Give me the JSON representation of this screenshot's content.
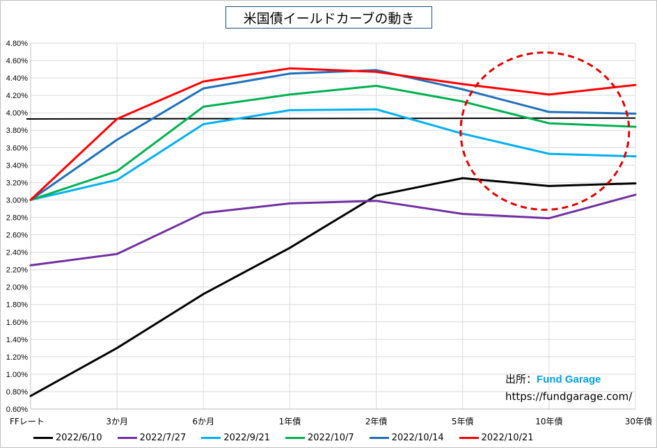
{
  "chart_data": {
    "type": "line",
    "title": "米国債イールドカーブの動き",
    "categories": [
      "FFレート",
      "3か月",
      "6か月",
      "1年債",
      "2年債",
      "5年債",
      "10年債",
      "30年債"
    ],
    "ylim": [
      0.6,
      4.8
    ],
    "yticks": [
      "0.60%",
      "0.80%",
      "1.00%",
      "1.20%",
      "1.40%",
      "1.60%",
      "1.80%",
      "2.00%",
      "2.20%",
      "2.40%",
      "2.60%",
      "2.80%",
      "3.00%",
      "3.20%",
      "3.40%",
      "3.60%",
      "3.80%",
      "4.00%",
      "4.20%",
      "4.40%",
      "4.60%",
      "4.80%"
    ],
    "ytick_values": [
      0.6,
      0.8,
      1.0,
      1.2,
      1.4,
      1.6,
      1.8,
      2.0,
      2.2,
      2.4,
      2.6,
      2.8,
      3.0,
      3.2,
      3.4,
      3.6,
      3.8,
      4.0,
      4.2,
      4.4,
      4.6,
      4.8
    ],
    "grid": true,
    "legend_position": "bottom",
    "series": [
      {
        "name": "2022/6/10",
        "color": "#000000",
        "values": [
          0.75,
          1.3,
          1.92,
          2.45,
          3.05,
          3.25,
          3.16,
          3.19
        ]
      },
      {
        "name": "2022/7/27",
        "color": "#7030a0",
        "values": [
          2.25,
          2.38,
          2.85,
          2.96,
          2.99,
          2.84,
          2.79,
          3.06
        ]
      },
      {
        "name": "2022/9/21",
        "color": "#00b0f0",
        "values": [
          3.0,
          3.23,
          3.87,
          4.03,
          4.04,
          3.76,
          3.53,
          3.5
        ]
      },
      {
        "name": "2022/10/7",
        "color": "#00b050",
        "values": [
          3.0,
          3.33,
          4.07,
          4.21,
          4.31,
          4.13,
          3.88,
          3.84
        ]
      },
      {
        "name": "2022/10/14",
        "color": "#1f6fb8",
        "values": [
          3.0,
          3.69,
          4.28,
          4.45,
          4.49,
          4.27,
          4.01,
          3.99
        ]
      },
      {
        "name": "2022/10/21",
        "color": "#ff0000",
        "values": [
          3.0,
          3.93,
          4.36,
          4.51,
          4.47,
          4.33,
          4.21,
          4.32
        ]
      }
    ],
    "reference_line": {
      "color": "#000000",
      "values": [
        3.93,
        3.94
      ]
    },
    "highlight_circle": {
      "color": "#e00000",
      "style": "dashed",
      "around": [
        "5年債",
        "10年債",
        "30年債"
      ]
    }
  },
  "source": {
    "label": "出所：",
    "brand": "Fund Garage",
    "url": "https://fundgarage.com/"
  }
}
